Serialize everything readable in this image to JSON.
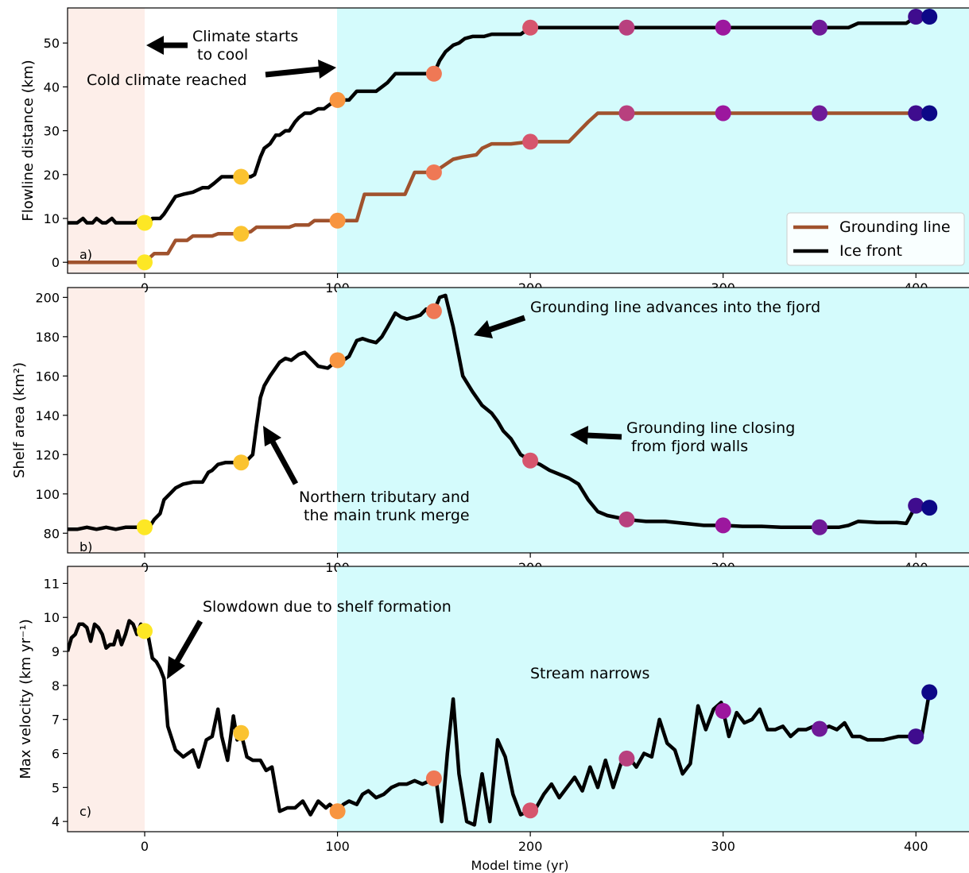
{
  "figure": {
    "xlabel": "Model time (yr)",
    "xlim": [
      -40,
      430
    ],
    "xticks": [
      0,
      100,
      200,
      300,
      400
    ],
    "colors": {
      "warm_shade": "#fdeee9",
      "cold_shade": "#d4fbfc",
      "ice_front": "#000000",
      "grounding_line": "#a0522d"
    },
    "marker_times": [
      0,
      50,
      100,
      150,
      200,
      250,
      300,
      350,
      400,
      407
    ],
    "marker_colors": [
      "#fde725",
      "#fbc330",
      "#f89540",
      "#ef7855",
      "#d6556d",
      "#b8407e",
      "#9c179e",
      "#6f1a98",
      "#3f0c8e",
      "#0d0887"
    ]
  },
  "chart_data": [
    {
      "id": "a",
      "type": "line",
      "panel_label": "a)",
      "ylabel": "Flowline distance (km)",
      "ylim": [
        -2.5,
        58
      ],
      "yticks": [
        0,
        10,
        20,
        30,
        40,
        50
      ],
      "legend": {
        "placement": "lower-right",
        "entries": [
          "Grounding line",
          "Ice front"
        ]
      },
      "series": [
        {
          "name": "Ice front",
          "color": "#000000",
          "x": [
            -40,
            -35,
            -32,
            -30,
            -27,
            -25,
            -22,
            -20,
            -17,
            -15,
            -12,
            -10,
            -5,
            -2,
            0,
            2,
            4,
            6,
            8,
            10,
            13,
            16,
            20,
            25,
            30,
            33,
            36,
            40,
            43,
            45,
            50,
            55,
            57,
            60,
            62,
            65,
            68,
            70,
            73,
            75,
            78,
            80,
            83,
            86,
            90,
            93,
            96,
            100,
            103,
            106,
            110,
            113,
            116,
            120,
            123,
            126,
            130,
            133,
            136,
            140,
            143,
            146,
            150,
            153,
            156,
            160,
            163,
            166,
            170,
            173,
            176,
            180,
            185,
            190,
            195,
            200,
            210,
            220,
            240,
            260,
            280,
            300,
            320,
            340,
            350,
            360,
            365,
            370,
            380,
            390,
            395,
            400,
            405,
            407
          ],
          "y": [
            9,
            9,
            10,
            9,
            9,
            10,
            9,
            9,
            10,
            9,
            9,
            9,
            9,
            10,
            9,
            9,
            10,
            10,
            10,
            11,
            13,
            15,
            15.5,
            16,
            17,
            17,
            18,
            19.5,
            19.5,
            19.5,
            19.5,
            19.5,
            20,
            24,
            26,
            27,
            29,
            29,
            30,
            30,
            32,
            33,
            34,
            34,
            35,
            35,
            36,
            37,
            37,
            37,
            39,
            39,
            39,
            39,
            40,
            41,
            43,
            43,
            43,
            43,
            43,
            43,
            43,
            46,
            48,
            49.5,
            50,
            51,
            51.5,
            51.5,
            51.5,
            52,
            52,
            52,
            52,
            53.5,
            53.5,
            53.5,
            53.5,
            53.5,
            53.5,
            53.5,
            53.5,
            53.5,
            53.5,
            53.5,
            53.5,
            54.5,
            54.5,
            54.5,
            54.5,
            56,
            56,
            56
          ]
        },
        {
          "name": "Grounding line",
          "color": "#a0522d",
          "x": [
            -40,
            0,
            5,
            12,
            16,
            22,
            25,
            35,
            38,
            50,
            55,
            58,
            75,
            78,
            85,
            88,
            110,
            114,
            135,
            140,
            150,
            155,
            160,
            165,
            172,
            175,
            180,
            190,
            200,
            220,
            230,
            235,
            240,
            260,
            300,
            350,
            400,
            407
          ],
          "y": [
            0,
            0,
            2,
            2,
            5,
            5,
            6,
            6,
            6.5,
            6.5,
            7,
            8,
            8,
            8.5,
            8.5,
            9.5,
            9.5,
            15.5,
            15.5,
            20.5,
            20.5,
            22,
            23.5,
            24,
            24.5,
            26,
            27,
            27,
            27.5,
            27.5,
            32,
            34,
            34,
            34,
            34,
            34,
            34,
            34
          ]
        }
      ],
      "annotations": [
        {
          "text_lines": [
            "Climate starts",
            " to cool"
          ]
        },
        {
          "text_lines": [
            "Cold climate reached"
          ]
        }
      ]
    },
    {
      "id": "b",
      "type": "line",
      "panel_label": "b)",
      "ylabel": "Shelf area (km²)",
      "ylim": [
        70,
        205
      ],
      "yticks": [
        80,
        100,
        120,
        140,
        160,
        180,
        200
      ],
      "series": [
        {
          "name": "",
          "color": "#000000",
          "x": [
            -40,
            -35,
            -30,
            -25,
            -20,
            -15,
            -10,
            -5,
            0,
            3,
            5,
            8,
            10,
            13,
            16,
            20,
            25,
            30,
            33,
            35,
            38,
            42,
            45,
            50,
            53,
            56,
            58,
            60,
            62,
            65,
            70,
            73,
            76,
            80,
            83,
            86,
            90,
            95,
            100,
            103,
            106,
            110,
            113,
            116,
            120,
            123,
            126,
            130,
            133,
            136,
            140,
            143,
            146,
            150,
            153,
            156,
            160,
            165,
            170,
            175,
            180,
            183,
            186,
            190,
            195,
            200,
            205,
            210,
            215,
            220,
            225,
            230,
            235,
            240,
            245,
            250,
            255,
            260,
            270,
            280,
            290,
            300,
            310,
            320,
            330,
            340,
            350,
            360,
            365,
            370,
            380,
            390,
            395,
            400,
            407
          ],
          "y": [
            82,
            82,
            83,
            82,
            83,
            82,
            83,
            83,
            83,
            84,
            87,
            90,
            97,
            100,
            103,
            105,
            106,
            106,
            111,
            112,
            115,
            116,
            116,
            116,
            117,
            120,
            135,
            149,
            155,
            160,
            167,
            169,
            168,
            171,
            172,
            169,
            165,
            164,
            168,
            168,
            170,
            178,
            179,
            178,
            177,
            180,
            185,
            192,
            190,
            189,
            190,
            191,
            194,
            193,
            200,
            201,
            185,
            160,
            152,
            145,
            141,
            137,
            132,
            128,
            120,
            117,
            115,
            112,
            110,
            108,
            105,
            97,
            91,
            89,
            88,
            87,
            86.5,
            86,
            86,
            85,
            84,
            84,
            83.5,
            83.5,
            83,
            83,
            83,
            83,
            84,
            86,
            85.5,
            85.5,
            85,
            94,
            93
          ]
        }
      ],
      "annotations": [
        {
          "text_lines": [
            "Grounding line advances into the fjord"
          ]
        },
        {
          "text_lines": [
            "Grounding line closing",
            " from fjord walls"
          ]
        },
        {
          "text_lines": [
            "Northern tributary and",
            " the main trunk merge"
          ]
        }
      ]
    },
    {
      "id": "c",
      "type": "line",
      "panel_label": "c)",
      "ylabel": "Max velocity (km yr⁻¹)",
      "ylim": [
        3.7,
        11.5
      ],
      "yticks": [
        4,
        5,
        6,
        7,
        8,
        9,
        10,
        11
      ],
      "series": [
        {
          "name": "",
          "color": "#000000",
          "x": [
            -40,
            -38,
            -36,
            -34,
            -32,
            -30,
            -28,
            -26,
            -24,
            -22,
            -20,
            -18,
            -16,
            -14,
            -12,
            -10,
            -8,
            -6,
            -4,
            -2,
            0,
            2,
            4,
            6,
            8,
            10,
            12,
            16,
            20,
            25,
            28,
            30,
            32,
            35,
            38,
            40,
            43,
            46,
            48,
            50,
            53,
            56,
            60,
            63,
            66,
            70,
            74,
            78,
            82,
            86,
            90,
            94,
            96,
            100,
            103,
            106,
            110,
            113,
            116,
            120,
            124,
            128,
            132,
            136,
            140,
            144,
            148,
            151,
            154,
            157,
            160,
            163,
            167,
            171,
            175,
            179,
            183,
            187,
            191,
            195,
            199,
            203,
            207,
            211,
            215,
            219,
            223,
            227,
            231,
            235,
            239,
            243,
            247,
            251,
            255,
            259,
            263,
            267,
            271,
            275,
            279,
            283,
            287,
            291,
            295,
            299,
            303,
            307,
            311,
            315,
            319,
            323,
            327,
            331,
            335,
            339,
            343,
            347,
            351,
            355,
            359,
            363,
            367,
            371,
            375,
            383,
            391,
            399,
            403,
            407
          ],
          "y": [
            9.0,
            9.4,
            9.5,
            9.8,
            9.8,
            9.7,
            9.3,
            9.8,
            9.7,
            9.5,
            9.1,
            9.2,
            9.2,
            9.6,
            9.2,
            9.5,
            9.9,
            9.8,
            9.5,
            9.8,
            9.6,
            9.4,
            8.8,
            8.7,
            8.5,
            8.2,
            6.8,
            6.1,
            5.9,
            6.1,
            5.6,
            6.0,
            6.4,
            6.5,
            7.3,
            6.5,
            5.8,
            7.1,
            6.4,
            6.6,
            5.9,
            5.8,
            5.8,
            5.5,
            5.6,
            4.3,
            4.4,
            4.4,
            4.6,
            4.2,
            4.6,
            4.4,
            4.5,
            4.3,
            4.5,
            4.6,
            4.5,
            4.8,
            4.9,
            4.7,
            4.8,
            5.0,
            5.1,
            5.1,
            5.2,
            5.1,
            5.2,
            5.3,
            4.0,
            6.0,
            7.6,
            5.4,
            4.0,
            3.9,
            5.4,
            4.0,
            6.4,
            5.9,
            4.8,
            4.2,
            4.3,
            4.4,
            4.8,
            5.1,
            4.7,
            5.0,
            5.3,
            4.9,
            5.6,
            5.0,
            5.8,
            5.0,
            5.7,
            5.9,
            5.6,
            6.0,
            5.9,
            7.0,
            6.3,
            6.1,
            5.4,
            5.7,
            7.4,
            6.7,
            7.3,
            7.5,
            6.5,
            7.2,
            6.9,
            7.0,
            7.3,
            6.7,
            6.7,
            6.8,
            6.5,
            6.7,
            6.7,
            6.8,
            6.7,
            6.8,
            6.7,
            6.9,
            6.5,
            6.5,
            6.4,
            6.4,
            6.5,
            6.5,
            6.5,
            7.8
          ]
        }
      ],
      "annotations": [
        {
          "text_lines": [
            "Slowdown due to shelf formation"
          ]
        },
        {
          "text_lines": [
            "Stream narrows"
          ]
        }
      ]
    }
  ]
}
